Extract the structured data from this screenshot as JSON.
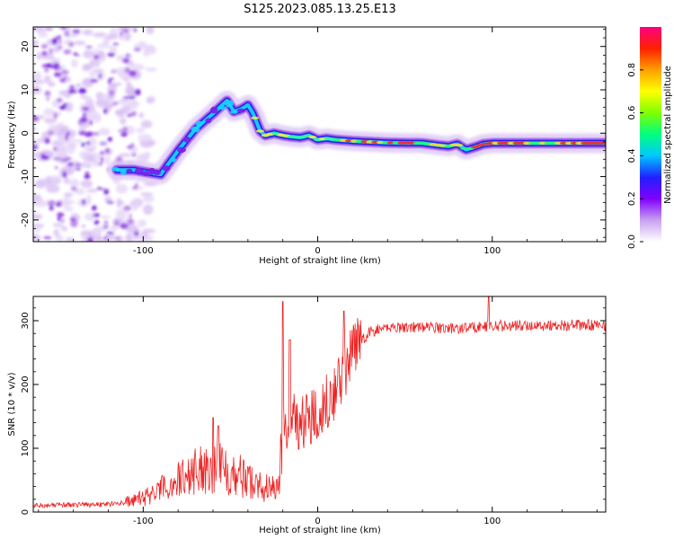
{
  "title": "S125.2023.085.13.25.E13",
  "chart_data": [
    {
      "type": "heatmap",
      "xlabel": "Height of straight line (km)",
      "ylabel": "Frequency (Hz)",
      "xlim": [
        -163,
        165
      ],
      "ylim": [
        -25,
        24.5
      ],
      "xticks": [
        -100,
        0,
        100
      ],
      "yticks": [
        -20,
        -10,
        0,
        10,
        20
      ],
      "colorbar": {
        "label": "Normalized spectral amplitude",
        "range": [
          0,
          1
        ],
        "ticks": [
          0.0,
          0.2,
          0.4,
          0.6,
          0.8
        ],
        "tick_labels": [
          "0.0",
          "0.2",
          "0.4",
          "0.6",
          "0.8"
        ],
        "colors": [
          "#ffffff",
          "#c8a0f0",
          "#8000ff",
          "#2020ff",
          "#00c8ff",
          "#00ff80",
          "#80ff00",
          "#ffff00",
          "#ffa000",
          "#ff2000",
          "#ff0080"
        ]
      },
      "ridge": {
        "name": "dominant frequency",
        "x": [
          -115,
          -105,
          -98,
          -90,
          -80,
          -70,
          -60,
          -52,
          -48,
          -44,
          -40,
          -37,
          -33,
          -30,
          -25,
          -20,
          -15,
          -10,
          -5,
          0,
          5,
          10,
          20,
          40,
          60,
          70,
          75,
          80,
          85,
          90,
          95,
          100,
          110,
          130,
          150,
          165
        ],
        "y": [
          -8.5,
          -8.5,
          -9,
          -9.5,
          -4,
          1,
          4.5,
          7.5,
          5,
          5.5,
          6.5,
          4.5,
          0.5,
          -0.5,
          0,
          -0.5,
          -0.8,
          -1,
          -0.5,
          -1.5,
          -1.2,
          -1.5,
          -1.8,
          -2.2,
          -2.3,
          -2.8,
          -3,
          -2.5,
          -3.8,
          -3.2,
          -2.5,
          -2.3,
          -2.3,
          -2.3,
          -2.3,
          -2.3
        ]
      },
      "scatter_region": {
        "xrange": [
          -163,
          -95
        ],
        "yrange": [
          -25,
          24.5
        ]
      }
    },
    {
      "type": "line",
      "xlabel": "Height of straight line (km)",
      "ylabel": "SNR (10 * v/v)",
      "xlim": [
        -163,
        165
      ],
      "ylim": [
        0,
        338
      ],
      "xticks": [
        -100,
        0,
        100
      ],
      "yticks": [
        0,
        100,
        200,
        300
      ],
      "color": "#ee2222",
      "series": [
        {
          "x": [
            -163,
            -150,
            -130,
            -115,
            -105,
            -100,
            -90,
            -80,
            -70,
            -60,
            -50,
            -40,
            -30,
            -25,
            -22,
            -20,
            -18,
            -15,
            -10,
            -5,
            0,
            5,
            10,
            15,
            20,
            25,
            30,
            40,
            60,
            80,
            100,
            120,
            140,
            165
          ],
          "y": [
            10,
            11,
            12,
            13,
            18,
            22,
            35,
            50,
            65,
            72,
            65,
            50,
            38,
            35,
            60,
            120,
            130,
            150,
            140,
            145,
            160,
            175,
            190,
            220,
            250,
            270,
            282,
            290,
            290,
            288,
            292,
            292,
            293,
            293
          ]
        }
      ],
      "spikes": [
        {
          "x": -60,
          "y": 148
        },
        {
          "x": -57,
          "y": 135
        },
        {
          "x": -20,
          "y": 330
        },
        {
          "x": -16,
          "y": 270
        },
        {
          "x": 15,
          "y": 315
        },
        {
          "x": 98,
          "y": 338
        }
      ]
    }
  ]
}
